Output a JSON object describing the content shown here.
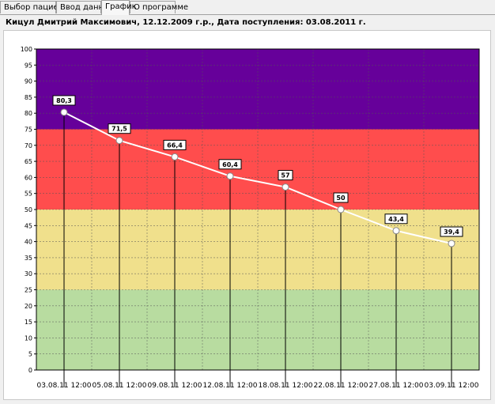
{
  "tabs": [
    {
      "label": "Выбор пациента",
      "active": false
    },
    {
      "label": "Ввод данных",
      "active": false
    },
    {
      "label": "График",
      "active": true
    },
    {
      "label": "О программе",
      "active": false
    }
  ],
  "patient_info": "Кицул Дмитрий Максимович, 12.12.2009 г.р., Дата поступления: 03.08.2011 г.",
  "chart_data": {
    "type": "line",
    "title": "",
    "xlabel": "",
    "ylabel": "",
    "ylim": [
      0,
      100
    ],
    "yticks": [
      0,
      5,
      10,
      15,
      20,
      25,
      30,
      35,
      40,
      45,
      50,
      55,
      60,
      65,
      70,
      75,
      80,
      85,
      90,
      95,
      100
    ],
    "grid": true,
    "categories": [
      "03.08.11 12:00",
      "05.08.11 12:00",
      "09.08.11 12:00",
      "12.08.11 12:00",
      "18.08.11 12:00",
      "22.08.11 12:00",
      "27.08.11 12:00",
      "03.09.11 12:00"
    ],
    "series": [
      {
        "values": [
          80.3,
          71.5,
          66.4,
          60.4,
          57,
          50,
          43.4,
          39.4
        ],
        "labels": [
          "80,3",
          "71,5",
          "66,4",
          "60,4",
          "57",
          "50",
          "43,4",
          "39,4"
        ],
        "color": "#ffffff"
      }
    ],
    "bands": [
      {
        "from": 75,
        "to": 100,
        "color": "#66009a"
      },
      {
        "from": 50,
        "to": 75,
        "color": "#ff4d4d"
      },
      {
        "from": 25,
        "to": 50,
        "color": "#f0e08c"
      },
      {
        "from": 0,
        "to": 25,
        "color": "#b8dca0"
      }
    ]
  }
}
